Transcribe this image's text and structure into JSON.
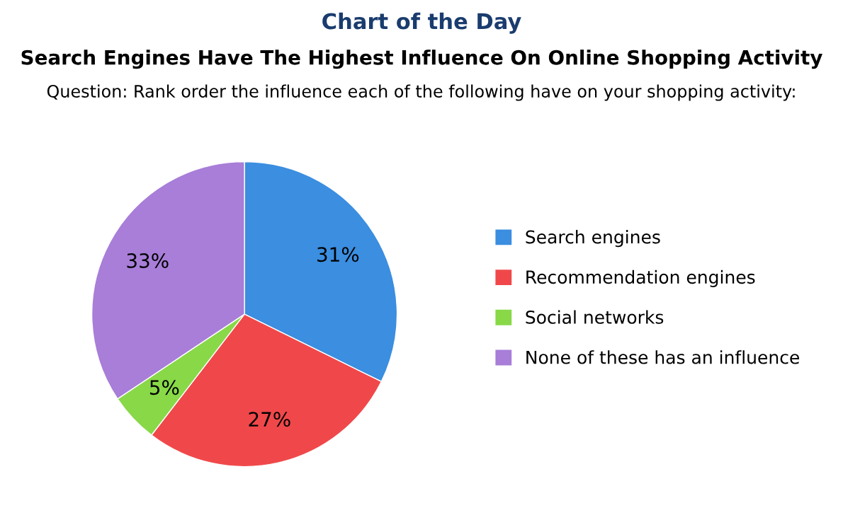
{
  "chart_data": {
    "type": "pie",
    "title": "Search Engines Have The Highest Influence On Online Shopping Activity",
    "subtitle": "Question: Rank order the influence each of the following have on your shopping activity:",
    "annotations": [
      "Chart of the Day"
    ],
    "categories": [
      "Search engines",
      "Recommendation engines",
      "Social networks",
      "None of these has an influence"
    ],
    "values": [
      31,
      27,
      5,
      33
    ],
    "colors": [
      "#3b8ee0",
      "#f0484a",
      "#88d848",
      "#a87ed8"
    ],
    "value_labels": [
      "31%",
      "27%",
      "5%",
      "33%"
    ],
    "legend": "right"
  }
}
